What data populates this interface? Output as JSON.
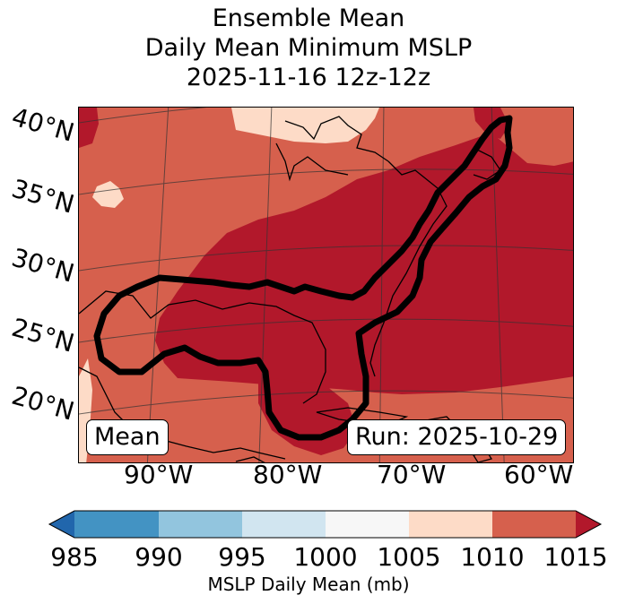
{
  "title": {
    "line1": "Ensemble Mean",
    "line2": "Daily Mean Minimum MSLP",
    "line3": "2025-11-16 12z-12z"
  },
  "map": {
    "lat_labels": [
      "40°N",
      "35°N",
      "30°N",
      "25°N",
      "20°N"
    ],
    "lon_labels": [
      "90°W",
      "80°W",
      "70°W",
      "60°W"
    ],
    "mean_badge": "Mean",
    "run_badge": "Run: 2025-10-29",
    "colors": {
      "985": "#2166ac",
      "985-990": "#4393c3",
      "990-995": "#92c5de",
      "995-1000": "#d1e5f0",
      "1000-1005": "#f7f7f7",
      "1005-1010": "#fddbc7",
      "1010-1015": "#d6604d",
      "1015+": "#b2182b"
    },
    "contour_color": "#000000"
  },
  "colorbar": {
    "ticks": [
      "985",
      "990",
      "995",
      "1000",
      "1005",
      "1010",
      "1015"
    ],
    "label": "MSLP Daily Mean (mb)",
    "extend": "both"
  }
}
